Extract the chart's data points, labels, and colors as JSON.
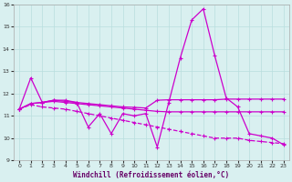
{
  "xlabel": "Windchill (Refroidissement éolien,°C)",
  "background_color": "#d9f0f0",
  "grid_color": "#b8dede",
  "line_color": "#cc00cc",
  "x": [
    0,
    1,
    2,
    3,
    4,
    5,
    6,
    7,
    8,
    9,
    10,
    11,
    12,
    13,
    14,
    15,
    16,
    17,
    18,
    19,
    20,
    21,
    22,
    23
  ],
  "line1": [
    11.3,
    12.7,
    11.6,
    11.7,
    11.7,
    11.6,
    10.5,
    11.1,
    10.2,
    11.1,
    11.0,
    11.1,
    9.6,
    11.6,
    13.6,
    15.3,
    15.8,
    13.7,
    11.8,
    11.4,
    10.2,
    10.1,
    10.0,
    9.7
  ],
  "line2": [
    11.3,
    11.55,
    11.6,
    11.7,
    11.65,
    11.6,
    11.55,
    11.5,
    11.45,
    11.4,
    11.38,
    11.35,
    11.7,
    11.72,
    11.72,
    11.72,
    11.72,
    11.72,
    11.75,
    11.75,
    11.75,
    11.75,
    11.75,
    11.75
  ],
  "line3": [
    11.3,
    11.55,
    11.6,
    11.65,
    11.6,
    11.55,
    11.5,
    11.45,
    11.4,
    11.35,
    11.3,
    11.25,
    11.2,
    11.18,
    11.18,
    11.18,
    11.18,
    11.18,
    11.18,
    11.18,
    11.18,
    11.18,
    11.18,
    11.18
  ],
  "line4": [
    11.3,
    11.5,
    11.4,
    11.35,
    11.3,
    11.2,
    11.1,
    11.0,
    10.9,
    10.8,
    10.7,
    10.6,
    10.5,
    10.4,
    10.3,
    10.2,
    10.1,
    10.0,
    10.0,
    10.0,
    9.9,
    9.85,
    9.8,
    9.75
  ],
  "ylim": [
    9,
    16
  ],
  "xlim": [
    -0.5,
    23.5
  ],
  "yticks": [
    9,
    10,
    11,
    12,
    13,
    14,
    15,
    16
  ],
  "xticks": [
    0,
    1,
    2,
    3,
    4,
    5,
    6,
    7,
    8,
    9,
    10,
    11,
    12,
    13,
    14,
    15,
    16,
    17,
    18,
    19,
    20,
    21,
    22,
    23
  ]
}
